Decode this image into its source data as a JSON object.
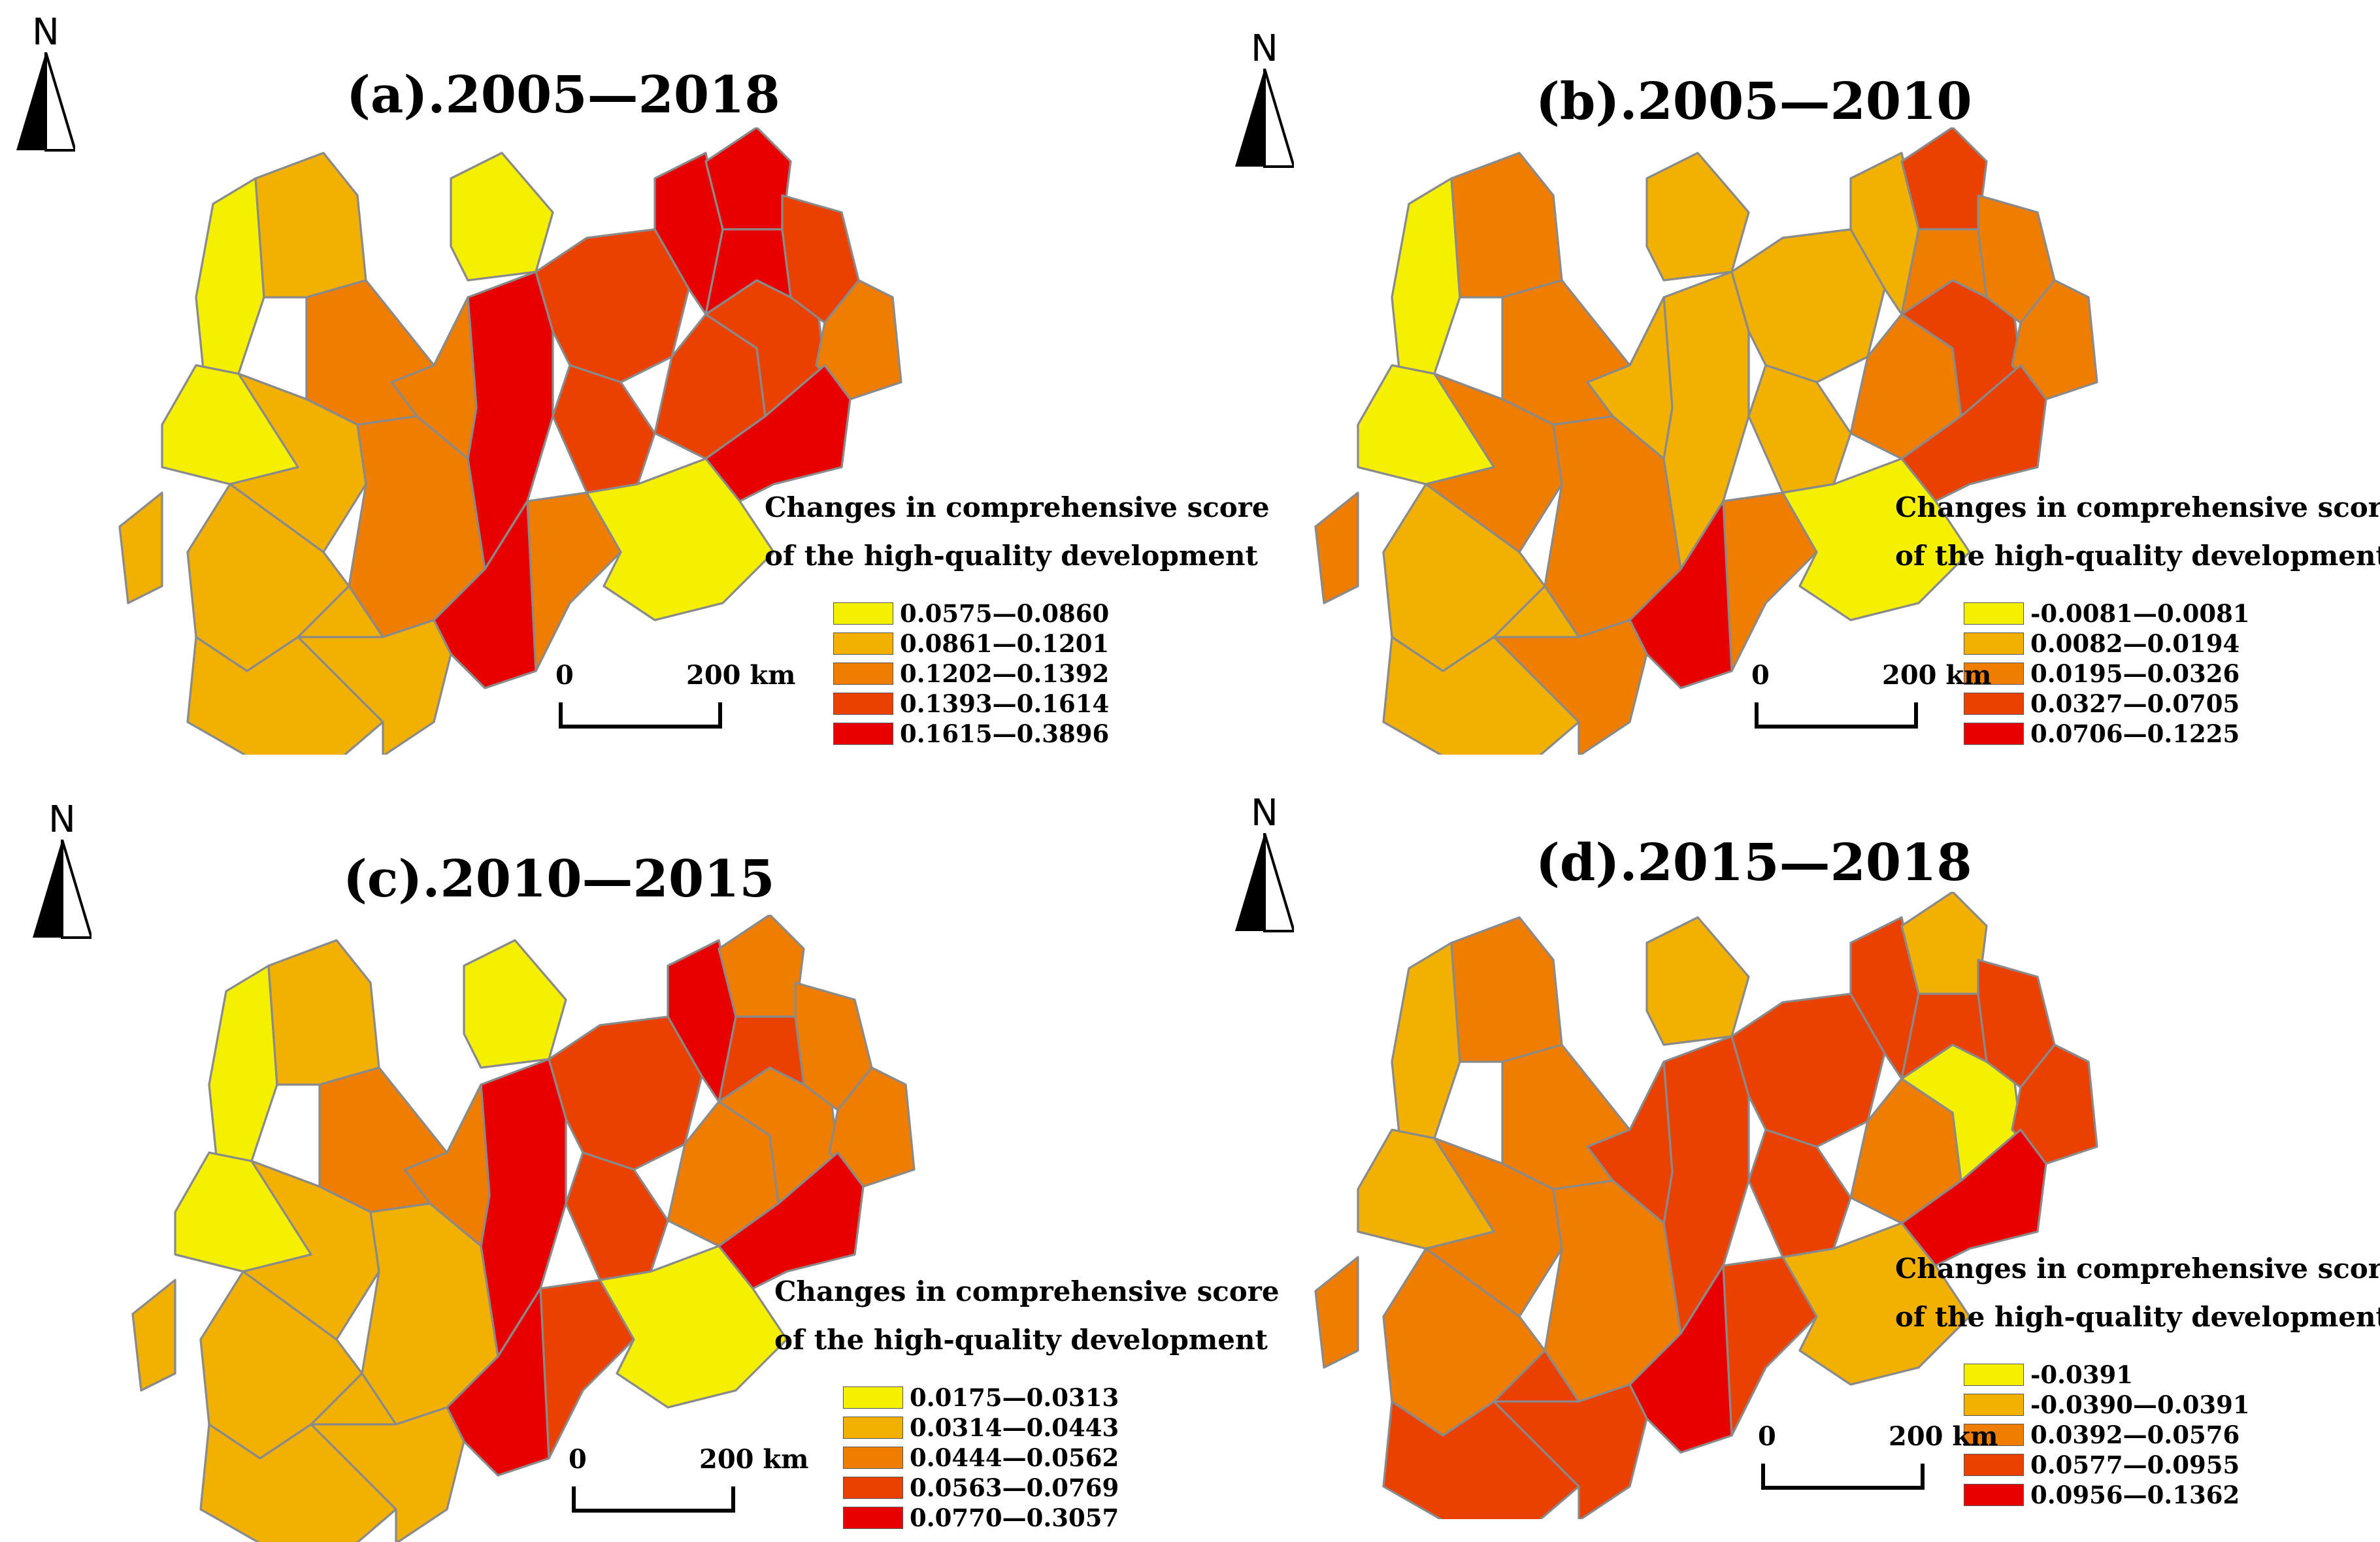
{
  "north_letter": "N",
  "scalebar": {
    "zero": "0",
    "distance": "200 km"
  },
  "legend_title_line1": "Changes in comprehensive score",
  "legend_title_line2": "of the high-quality development",
  "class_colors": [
    "#f5f000",
    "#f2b000",
    "#ee7d00",
    "#ea4000",
    "#e80000"
  ],
  "panels": [
    {
      "id": "a",
      "title": "(a).2005—2018",
      "legend": [
        "0.0575—0.0860",
        "0.0861—0.1201",
        "0.1202—0.1392",
        "0.1393—0.1614",
        "0.1615—0.3896"
      ],
      "region_classes": [
        0,
        1,
        0,
        1,
        2,
        1,
        2,
        0,
        4,
        2,
        3,
        4,
        3,
        3,
        3,
        4,
        4,
        3,
        2,
        1,
        1,
        2,
        1,
        4,
        0,
        4
      ]
    },
    {
      "id": "b",
      "title": "(b).2005—2010",
      "legend": [
        "-0.0081—0.0081",
        "0.0082—0.0194",
        "0.0195—0.0326",
        "0.0327—0.0705",
        "0.0706—0.1225"
      ],
      "region_classes": [
        0,
        2,
        0,
        2,
        2,
        2,
        2,
        1,
        1,
        1,
        1,
        1,
        2,
        1,
        3,
        3,
        2,
        2,
        2,
        1,
        1,
        2,
        2,
        4,
        0,
        3
      ]
    },
    {
      "id": "c",
      "title": "(c).2010—2015",
      "legend": [
        "0.0175—0.0313",
        "0.0314—0.0443",
        "0.0444—0.0562",
        "0.0563—0.0769",
        "0.0770—0.3057"
      ],
      "region_classes": [
        0,
        1,
        0,
        1,
        2,
        1,
        1,
        0,
        4,
        2,
        3,
        4,
        2,
        3,
        2,
        2,
        3,
        2,
        2,
        1,
        1,
        3,
        1,
        4,
        0,
        4
      ]
    },
    {
      "id": "d",
      "title": "(d).2015—2018",
      "legend": [
        "-0.0391",
        "-0.0390—0.0391",
        "0.0392—0.0576",
        "0.0577—0.0955",
        "0.0956—0.1362"
      ],
      "region_classes": [
        1,
        2,
        1,
        2,
        2,
        2,
        2,
        1,
        3,
        3,
        3,
        3,
        2,
        3,
        0,
        1,
        3,
        3,
        3,
        2,
        3,
        3,
        3,
        4,
        1,
        4
      ]
    }
  ]
}
